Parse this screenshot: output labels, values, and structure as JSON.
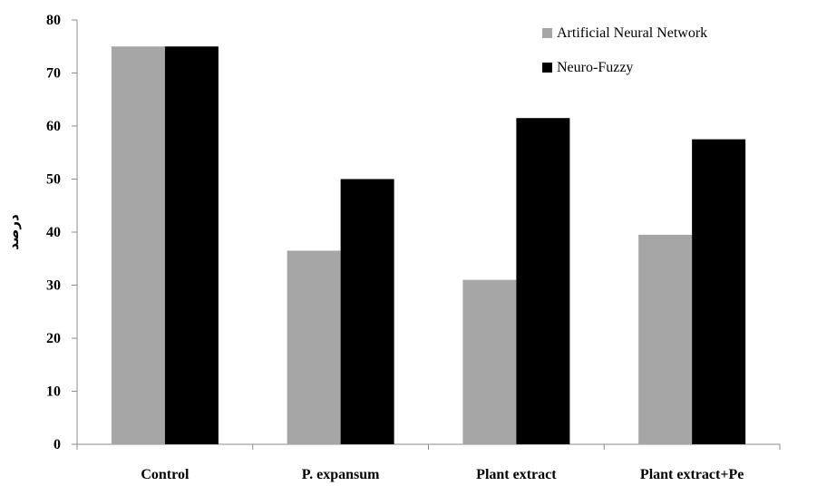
{
  "chart_data": {
    "type": "bar",
    "categories": [
      "Control",
      "P. expansum",
      "Plant extract",
      "Plant extract+Pe"
    ],
    "series": [
      {
        "name": "Artificial Neural Network",
        "values": [
          75,
          36.5,
          31,
          39.5
        ],
        "color": "#a6a6a6"
      },
      {
        "name": "Neuro-Fuzzy",
        "values": [
          75,
          50,
          61.5,
          57.5
        ],
        "color": "#000000"
      }
    ],
    "title": "",
    "xlabel": "",
    "ylabel": "درصد",
    "ylim": [
      0,
      80
    ],
    "yticks": [
      0,
      10,
      20,
      30,
      40,
      50,
      60,
      70,
      80
    ],
    "grid": false,
    "legend_position": "top-right"
  }
}
